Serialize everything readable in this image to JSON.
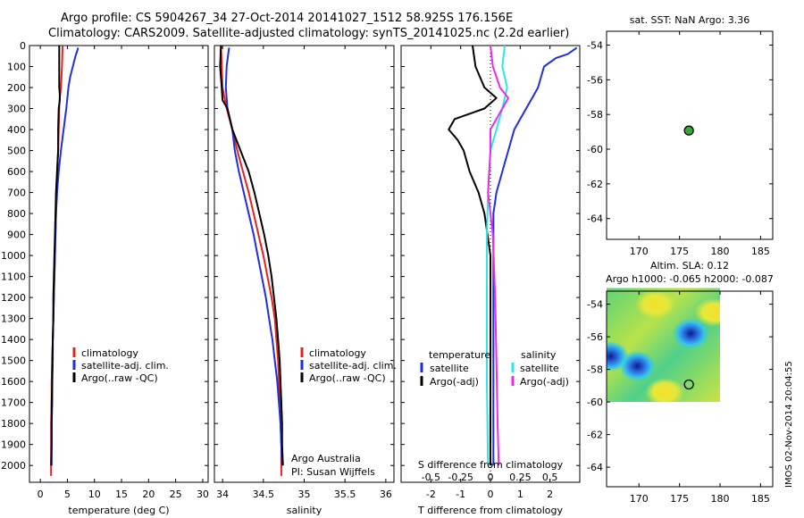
{
  "header": {
    "title_line1": "Argo profile: CS 5904267_34 27-Oct-2014 20141027_1512 58.925S 176.156E",
    "title_line2": "Climatology: CARS2009. Satellite-adjusted climatology: synTS_20141025.nc (2.2d earlier)"
  },
  "footer_stamp": "IMOS 02-Nov-2014 20:04:55",
  "colors": {
    "climatology": "#e8211b",
    "satellite": "#1f2fd9",
    "argo": "#000000",
    "cyan": "#2ee6e6",
    "magenta": "#e62ee6",
    "marker": "#33aa33"
  },
  "chart_data": [
    {
      "type": "line",
      "id": "temperature",
      "xlabel": "temperature (deg C)",
      "xlim": [
        -2,
        31
      ],
      "ylim": [
        2080,
        0
      ],
      "xticks": [
        0,
        5,
        10,
        15,
        20,
        25,
        30
      ],
      "yticks": [
        0,
        100,
        200,
        300,
        400,
        500,
        600,
        700,
        800,
        900,
        1000,
        1100,
        1200,
        1300,
        1400,
        1500,
        1600,
        1700,
        1800,
        1900,
        2000
      ],
      "legend": [
        "climatology",
        "satellite-adj. clim.",
        "Argo(..raw -QC)"
      ],
      "series": [
        {
          "name": "climatology",
          "color": "#e8211b",
          "points": [
            [
              4.1,
              0
            ],
            [
              4.0,
              100
            ],
            [
              3.8,
              200
            ],
            [
              3.6,
              250
            ],
            [
              3.5,
              300
            ],
            [
              3.4,
              400
            ],
            [
              3.3,
              500
            ],
            [
              3.1,
              600
            ],
            [
              3.0,
              700
            ],
            [
              2.9,
              800
            ],
            [
              2.8,
              900
            ],
            [
              2.7,
              1000
            ],
            [
              2.6,
              1100
            ],
            [
              2.5,
              1200
            ],
            [
              2.4,
              1300
            ],
            [
              2.3,
              1400
            ],
            [
              2.2,
              1500
            ],
            [
              2.1,
              1600
            ],
            [
              2.1,
              1700
            ],
            [
              2.0,
              1800
            ],
            [
              2.0,
              1900
            ],
            [
              2.0,
              2050
            ]
          ]
        },
        {
          "name": "satellite-adj. clim.",
          "color": "#1f2fd9",
          "points": [
            [
              7.0,
              10
            ],
            [
              6.5,
              50
            ],
            [
              6.0,
              100
            ],
            [
              5.5,
              150
            ],
            [
              5.2,
              200
            ],
            [
              4.8,
              300
            ],
            [
              4.3,
              400
            ],
            [
              3.8,
              500
            ],
            [
              3.4,
              600
            ],
            [
              3.1,
              700
            ],
            [
              2.9,
              800
            ],
            [
              2.8,
              900
            ],
            [
              2.7,
              1000
            ],
            [
              2.6,
              1100
            ],
            [
              2.5,
              1200
            ],
            [
              2.4,
              1300
            ],
            [
              2.3,
              1400
            ],
            [
              2.3,
              1500
            ],
            [
              2.2,
              1600
            ],
            [
              2.2,
              1700
            ],
            [
              2.1,
              1800
            ],
            [
              2.1,
              1900
            ],
            [
              2.1,
              2000
            ]
          ]
        },
        {
          "name": "Argo(..raw -QC)",
          "color": "#000000",
          "points": [
            [
              3.5,
              0
            ],
            [
              3.5,
              100
            ],
            [
              3.5,
              200
            ],
            [
              3.6,
              230
            ],
            [
              3.6,
              260
            ],
            [
              3.4,
              300
            ],
            [
              3.3,
              400
            ],
            [
              3.3,
              500
            ],
            [
              3.1,
              600
            ],
            [
              2.9,
              700
            ],
            [
              2.8,
              800
            ],
            [
              2.7,
              900
            ],
            [
              2.6,
              1000
            ],
            [
              2.5,
              1100
            ],
            [
              2.4,
              1200
            ],
            [
              2.4,
              1300
            ],
            [
              2.3,
              1400
            ],
            [
              2.2,
              1500
            ],
            [
              2.2,
              1600
            ],
            [
              2.1,
              1700
            ],
            [
              2.1,
              1800
            ],
            [
              2.1,
              1900
            ],
            [
              2.0,
              2000
            ]
          ]
        }
      ]
    },
    {
      "type": "line",
      "id": "salinity",
      "xlabel": "salinity",
      "xlim": [
        33.9,
        36.1
      ],
      "ylim": [
        2080,
        0
      ],
      "xticks": [
        34,
        34.5,
        35,
        35.5,
        36
      ],
      "xticklabels": [
        "34",
        "34.5",
        "35",
        "35.5",
        "36"
      ],
      "legend": [
        "climatology",
        "satellite-adj. clim.",
        "Argo(..raw -QC)"
      ],
      "annotation": [
        "Argo Australia",
        "PI: Susan Wijffels"
      ],
      "series": [
        {
          "name": "climatology",
          "color": "#e8211b",
          "points": [
            [
              33.98,
              0
            ],
            [
              33.99,
              100
            ],
            [
              34.0,
              200
            ],
            [
              34.05,
              300
            ],
            [
              34.12,
              400
            ],
            [
              34.18,
              500
            ],
            [
              34.25,
              600
            ],
            [
              34.32,
              700
            ],
            [
              34.38,
              800
            ],
            [
              34.44,
              900
            ],
            [
              34.5,
              1000
            ],
            [
              34.55,
              1100
            ],
            [
              34.6,
              1200
            ],
            [
              34.64,
              1300
            ],
            [
              34.66,
              1400
            ],
            [
              34.68,
              1500
            ],
            [
              34.69,
              1600
            ],
            [
              34.7,
              1700
            ],
            [
              34.71,
              1800
            ],
            [
              34.72,
              1900
            ],
            [
              34.72,
              2050
            ]
          ]
        },
        {
          "name": "satellite-adj. clim.",
          "color": "#1f2fd9",
          "points": [
            [
              34.08,
              10
            ],
            [
              34.05,
              100
            ],
            [
              34.04,
              200
            ],
            [
              34.06,
              300
            ],
            [
              34.12,
              400
            ],
            [
              34.15,
              500
            ],
            [
              34.2,
              600
            ],
            [
              34.26,
              700
            ],
            [
              34.32,
              800
            ],
            [
              34.38,
              900
            ],
            [
              34.43,
              1000
            ],
            [
              34.48,
              1100
            ],
            [
              34.53,
              1200
            ],
            [
              34.57,
              1300
            ],
            [
              34.61,
              1400
            ],
            [
              34.64,
              1500
            ],
            [
              34.67,
              1600
            ],
            [
              34.69,
              1700
            ],
            [
              34.71,
              1800
            ],
            [
              34.72,
              1900
            ],
            [
              34.73,
              2000
            ]
          ]
        },
        {
          "name": "Argo(..raw -QC)",
          "color": "#000000",
          "points": [
            [
              33.98,
              0
            ],
            [
              33.97,
              100
            ],
            [
              33.99,
              200
            ],
            [
              34.0,
              260
            ],
            [
              34.06,
              300
            ],
            [
              34.12,
              400
            ],
            [
              34.22,
              500
            ],
            [
              34.32,
              600
            ],
            [
              34.39,
              700
            ],
            [
              34.45,
              800
            ],
            [
              34.51,
              900
            ],
            [
              34.56,
              1000
            ],
            [
              34.6,
              1100
            ],
            [
              34.63,
              1200
            ],
            [
              34.66,
              1300
            ],
            [
              34.68,
              1400
            ],
            [
              34.7,
              1500
            ],
            [
              34.71,
              1600
            ],
            [
              34.72,
              1700
            ],
            [
              34.73,
              1800
            ],
            [
              34.73,
              1900
            ],
            [
              34.74,
              2000
            ]
          ]
        }
      ]
    },
    {
      "type": "line",
      "id": "difference",
      "xlabel": "T difference from climatology",
      "xlabel_top": "S difference from climatology",
      "xlim": [
        -3,
        3
      ],
      "ylim": [
        2080,
        0
      ],
      "xticks": [
        -2,
        -1,
        0,
        1,
        2
      ],
      "xticks_top": [
        -0.5,
        -0.25,
        0,
        0.25,
        0.5
      ],
      "xticks_top_labels": [
        "-0.5",
        "-0.25",
        "0",
        "0.25",
        "0.5"
      ],
      "legend_temperature": {
        "heading": "temperature",
        "items": [
          "satellite",
          "Argo(-adj)"
        ]
      },
      "legend_salinity": {
        "heading": "salinity",
        "items": [
          "satellite",
          "Argo(-adj)"
        ]
      },
      "series": [
        {
          "name": "T satellite",
          "color": "#1f2fd9",
          "points": [
            [
              2.9,
              10
            ],
            [
              2.6,
              40
            ],
            [
              2.2,
              60
            ],
            [
              1.8,
              100
            ],
            [
              1.6,
              200
            ],
            [
              1.4,
              250
            ],
            [
              1.0,
              350
            ],
            [
              0.8,
              400
            ],
            [
              0.6,
              500
            ],
            [
              0.4,
              600
            ],
            [
              0.2,
              700
            ],
            [
              0.1,
              800
            ],
            [
              0.1,
              900
            ],
            [
              0.1,
              1000
            ],
            [
              0.1,
              1500
            ],
            [
              0.1,
              1900
            ],
            [
              0.1,
              2000
            ]
          ]
        },
        {
          "name": "T Argo(-adj)",
          "color": "#000000",
          "points": [
            [
              -0.6,
              0
            ],
            [
              -0.5,
              100
            ],
            [
              -0.2,
              200
            ],
            [
              0.2,
              250
            ],
            [
              -0.2,
              300
            ],
            [
              -1.2,
              350
            ],
            [
              -1.4,
              400
            ],
            [
              -1.1,
              450
            ],
            [
              -0.9,
              500
            ],
            [
              -0.7,
              600
            ],
            [
              -0.4,
              700
            ],
            [
              -0.2,
              800
            ],
            [
              -0.1,
              900
            ],
            [
              0.0,
              1000
            ],
            [
              0.0,
              1500
            ],
            [
              0.0,
              2000
            ]
          ]
        },
        {
          "name": "S satellite",
          "color": "#2ee6e6",
          "points": [
            [
              0.12,
              0
            ],
            [
              0.1,
              100
            ],
            [
              0.14,
              200
            ],
            [
              0.1,
              300
            ],
            [
              0.05,
              400
            ],
            [
              0.0,
              500
            ],
            [
              -0.02,
              700
            ],
            [
              -0.03,
              900
            ],
            [
              -0.03,
              1200
            ],
            [
              -0.03,
              1600
            ],
            [
              -0.02,
              2000
            ]
          ]
        },
        {
          "name": "S Argo(-adj)",
          "color": "#e62ee6",
          "points": [
            [
              0.0,
              0
            ],
            [
              0.02,
              100
            ],
            [
              0.08,
              200
            ],
            [
              0.15,
              250
            ],
            [
              0.1,
              300
            ],
            [
              0.0,
              400
            ],
            [
              0.0,
              500
            ],
            [
              -0.02,
              700
            ],
            [
              0.02,
              900
            ],
            [
              0.04,
              1200
            ],
            [
              0.05,
              1500
            ],
            [
              0.06,
              1800
            ],
            [
              0.07,
              2000
            ]
          ]
        }
      ]
    },
    {
      "type": "scatter",
      "id": "sst-map",
      "title": "sat. SST: NaN Argo: 3.36",
      "xlim": [
        166,
        186.5
      ],
      "ylim": [
        -65.2,
        -53.2
      ],
      "xticks": [
        170,
        175,
        180,
        185
      ],
      "yticks": [
        -54,
        -56,
        -58,
        -60,
        -62,
        -64
      ],
      "points": [
        {
          "x": 176.156,
          "y": -58.925
        }
      ]
    },
    {
      "type": "heatmap",
      "id": "sla-map",
      "title_line1": "Altim. SLA: 0.12",
      "title_line2": "Argo h1000: -0.065 h2000: -0.087",
      "xlim": [
        166,
        186.5
      ],
      "ylim": [
        -65.2,
        -53.2
      ],
      "xticks": [
        170,
        175,
        180,
        185
      ],
      "yticks": [
        -54,
        -56,
        -58,
        -60,
        -62,
        -64
      ],
      "field_extent": {
        "lon": [
          166,
          180
        ],
        "lat": [
          -60,
          -53
        ]
      },
      "lows": [
        {
          "lon": 169.8,
          "lat": -57.8
        },
        {
          "lon": 166.5,
          "lat": -57.2
        },
        {
          "lon": 176.4,
          "lat": -55.8
        }
      ],
      "highs": [
        {
          "lon": 173.2,
          "lat": -59.4
        },
        {
          "lon": 179.3,
          "lat": -54.5
        },
        {
          "lon": 172.0,
          "lat": -54.0
        }
      ],
      "points": [
        {
          "x": 176.156,
          "y": -58.925
        }
      ]
    }
  ]
}
